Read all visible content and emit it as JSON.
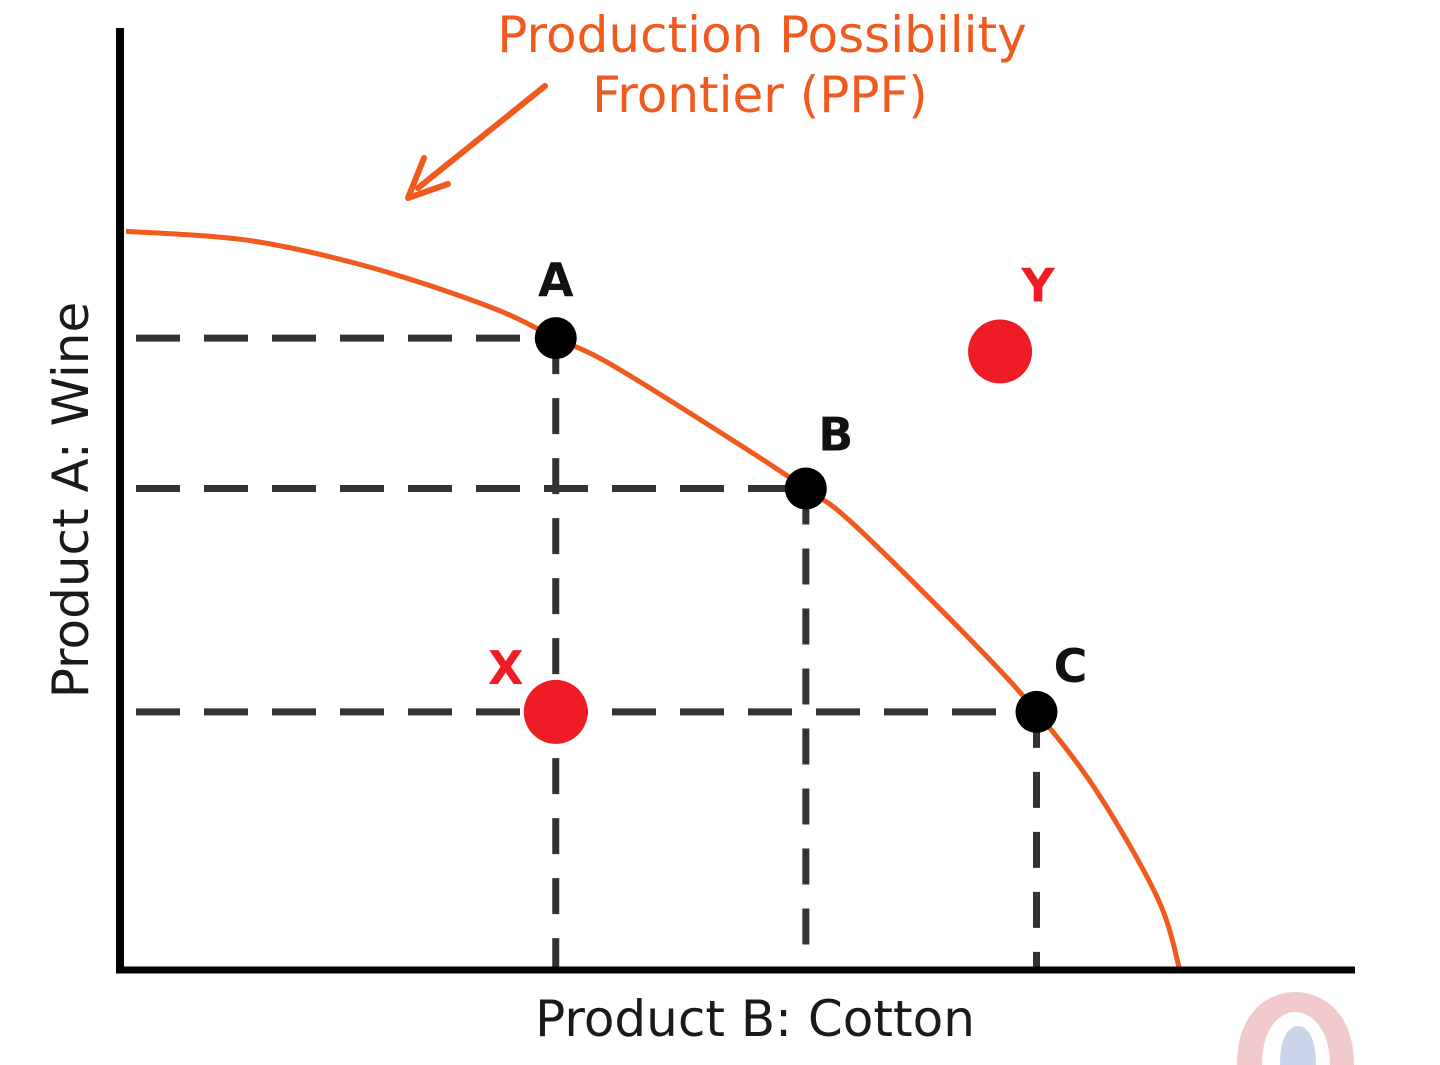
{
  "chart_data": {
    "type": "line",
    "title_lines": [
      "Production Possibility",
      "Frontier (PPF)"
    ],
    "xlabel": "Product B: Cotton",
    "ylabel": "Product A:  Wine",
    "xlim": [
      0,
      100
    ],
    "ylim": [
      0,
      100
    ],
    "grid": false,
    "legend": "none",
    "curve": {
      "x": [
        0,
        10,
        20,
        30,
        35.4,
        40,
        50,
        56,
        60,
        70,
        75,
        80,
        85,
        86.8
      ],
      "y": [
        83,
        82,
        79,
        74.5,
        71,
        68,
        59.5,
        54.1,
        50,
        36.5,
        29,
        20,
        8,
        0
      ]
    },
    "points": [
      {
        "label": "A",
        "x": 35.4,
        "y": 71,
        "kind": "frontier",
        "color": "#000000"
      },
      {
        "label": "B",
        "x": 56,
        "y": 54.1,
        "kind": "frontier",
        "color": "#000000"
      },
      {
        "label": "C",
        "x": 75,
        "y": 29,
        "kind": "frontier",
        "color": "#000000"
      },
      {
        "label": "X",
        "x": 35.4,
        "y": 29,
        "kind": "inefficient",
        "color": "#ee1c25"
      },
      {
        "label": "Y",
        "x": 72,
        "y": 69.5,
        "kind": "unattainable",
        "color": "#ee1c25"
      }
    ],
    "colors": {
      "curve": "#f05a1e",
      "title": "#f05a1e",
      "axes": "#000000",
      "guides": "#333333",
      "frontier_point": "#000000",
      "off_frontier_point": "#ee1c25"
    }
  }
}
